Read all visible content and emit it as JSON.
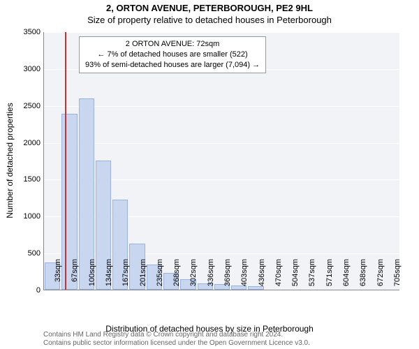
{
  "title_line1": "2, ORTON AVENUE, PETERBOROUGH, PE2 9HL",
  "title_line2": "Size of property relative to detached houses in Peterborough",
  "ylabel": "Number of detached properties",
  "xlabel": "Distribution of detached houses by size in Peterborough",
  "chart": {
    "type": "bar",
    "background_color": "#f2f3f7",
    "grid_color": "#ffffff",
    "bar_fill": "#c8d6f0",
    "bar_border": "#9ab2df",
    "marker_color": "#d03030",
    "ymax": 3500,
    "ytick_step": 500,
    "yticks": [
      0,
      500,
      1000,
      1500,
      2000,
      2500,
      3000,
      3500
    ],
    "categories": [
      "33sqm",
      "67sqm",
      "100sqm",
      "134sqm",
      "167sqm",
      "201sqm",
      "235sqm",
      "268sqm",
      "302sqm",
      "336sqm",
      "369sqm",
      "403sqm",
      "436sqm",
      "470sqm",
      "504sqm",
      "537sqm",
      "571sqm",
      "604sqm",
      "638sqm",
      "672sqm",
      "705sqm"
    ],
    "values": [
      370,
      2380,
      2590,
      1750,
      1220,
      620,
      340,
      230,
      140,
      90,
      75,
      55,
      45,
      0,
      0,
      0,
      0,
      0,
      0,
      0,
      0
    ],
    "marker_position_sqm": 72,
    "marker_category_index": 1
  },
  "info_box": {
    "line1": "2 ORTON AVENUE: 72sqm",
    "line2": "← 7% of detached houses are smaller (522)",
    "line3": "93% of semi-detached houses are larger (7,094) →"
  },
  "copyright": {
    "line1": "Contains HM Land Registry data © Crown copyright and database right 2024.",
    "line2": "Contains public sector information licensed under the Open Government Licence v3.0."
  },
  "label_fontsize": 12,
  "tick_fontsize": 11,
  "title_fontsize": 13
}
